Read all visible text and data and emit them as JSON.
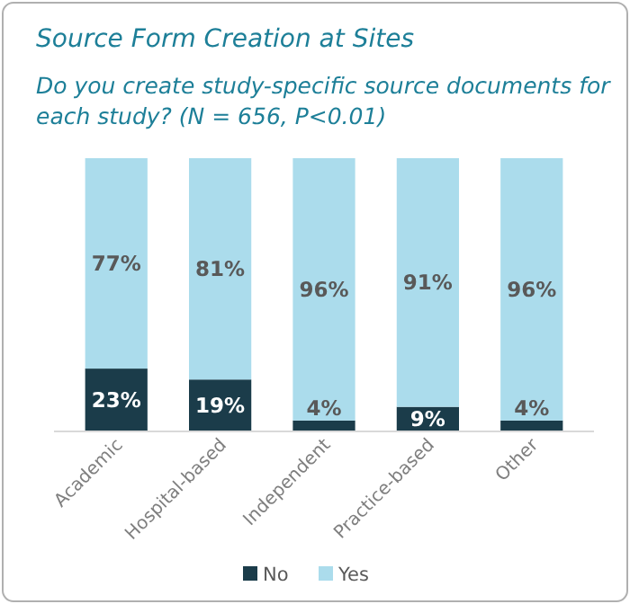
{
  "chart_data": {
    "type": "bar",
    "stacked": true,
    "title": "Source Form Creation at Sites",
    "subtitle": "Do you create study-specific source documents for each study? (N = 656, P<0.01)",
    "categories": [
      "Academic",
      "Hospital-based",
      "Independent",
      "Practice-based",
      "Other"
    ],
    "series": [
      {
        "name": "No",
        "color": "#1b3c4a",
        "values": [
          23,
          19,
          4,
          9,
          4
        ],
        "value_labels": [
          "23%",
          "19%",
          "4%",
          "9%",
          "4%"
        ]
      },
      {
        "name": "Yes",
        "color": "#abdcec",
        "values": [
          77,
          81,
          96,
          91,
          96
        ],
        "value_labels": [
          "77%",
          "81%",
          "96%",
          "91%",
          "96%"
        ]
      }
    ],
    "legend": "bottom",
    "grid": false
  }
}
